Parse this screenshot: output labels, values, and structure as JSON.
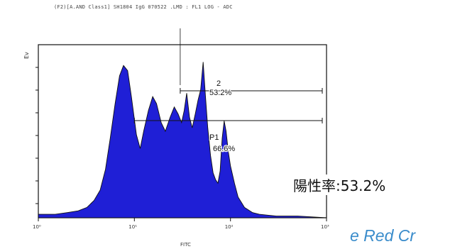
{
  "chart_data": {
    "type": "area",
    "title": "(F2)[A.AND Class1] SH1804 IgG 070522 .LMD : FL1 LOG - ADC",
    "xlabel": "FITC",
    "ylabel": "Ev",
    "x_scale": "log",
    "xlim": [
      1,
      1000
    ],
    "x_ticks": [
      1,
      10,
      100,
      1000
    ],
    "x_tick_labels": [
      "10⁰",
      "10¹",
      "10²",
      "10³"
    ],
    "fill_color": "#1f1fd6",
    "grid": false,
    "x": [
      1,
      1.5,
      2,
      2.6,
      3.2,
      3.8,
      4.4,
      5,
      5.6,
      6.3,
      7,
      7.7,
      8.5,
      9.3,
      10.5,
      11.5,
      12.5,
      14,
      15.5,
      17,
      19,
      21,
      23.5,
      26,
      28.5,
      31,
      33,
      35,
      37.5,
      40,
      43,
      46,
      49,
      52,
      55,
      58,
      62,
      66,
      70,
      74,
      78,
      82,
      86,
      90,
      95,
      100,
      110,
      120,
      140,
      170,
      200,
      300,
      500,
      1000
    ],
    "y": [
      2,
      2,
      3,
      4,
      6,
      10,
      16,
      28,
      46,
      66,
      82,
      88,
      85,
      70,
      48,
      40,
      50,
      62,
      70,
      66,
      55,
      50,
      58,
      64,
      60,
      55,
      62,
      72,
      58,
      52,
      60,
      68,
      74,
      90,
      70,
      52,
      36,
      26,
      22,
      20,
      27,
      46,
      56,
      50,
      38,
      30,
      20,
      12,
      6,
      3,
      2,
      1,
      1,
      0
    ],
    "gates": [
      {
        "name": "2",
        "percent": "53.2%",
        "x_start": 30,
        "x_end": 1000
      },
      {
        "name": "P1",
        "percent": "66.6%",
        "x_start": 10,
        "x_end": 1000
      }
    ],
    "cursor_x": 30
  },
  "annotation": {
    "positive_rate": "陽性率:53.2%",
    "clipped_text": "e Red Cr"
  }
}
